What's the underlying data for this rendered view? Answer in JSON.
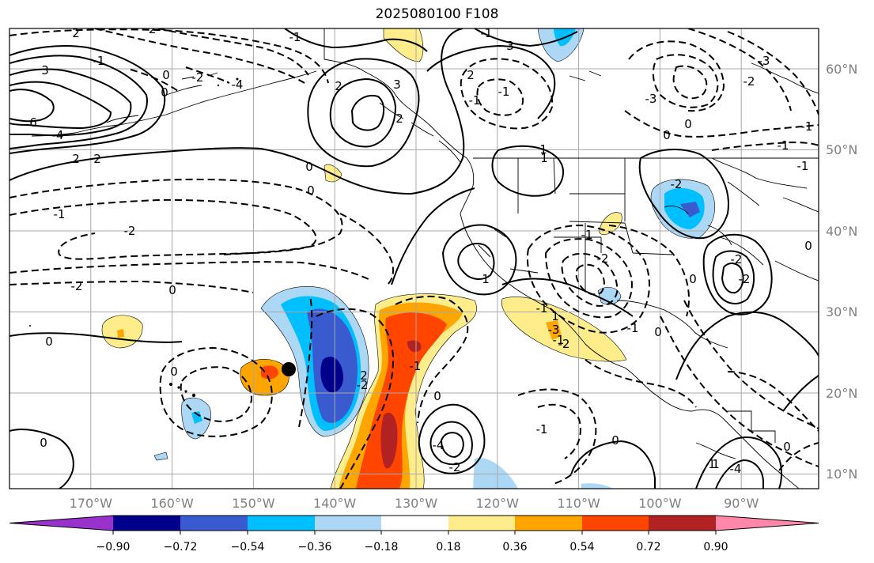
{
  "title": "2025080100 F108",
  "lon_labels": [
    "170°W",
    "160°W",
    "150°W",
    "140°W",
    "130°W",
    "120°W",
    "110°W",
    "100°W",
    "90°W"
  ],
  "lat_labels": [
    "60°N",
    "50°N",
    "40°N",
    "30°N",
    "20°N",
    "10°N"
  ],
  "colorbar": {
    "tick_labels": [
      "−0.90",
      "−0.72",
      "−0.54",
      "−0.36",
      "−0.18",
      "0.18",
      "0.36",
      "0.54",
      "0.72",
      "0.90"
    ],
    "colors": [
      "#9932cc",
      "#00008b",
      "#3a5bcf",
      "#00bfff",
      "#add8f5",
      "#ffffff",
      "#ffec8b",
      "#ffa500",
      "#ff4500",
      "#b22222",
      "#ff88aa"
    ]
  },
  "contour_labels": [
    "2",
    "-2",
    "0",
    "-1",
    "3",
    "6",
    "-4",
    "0",
    "-2",
    "-1",
    "0",
    "0",
    "2",
    "0",
    "2",
    "-4",
    "3",
    "3",
    "-2",
    "-1",
    "0",
    "1",
    "-2",
    "-1",
    "-1",
    "-3",
    "-2",
    "0",
    "-1",
    "0",
    "0",
    "-1",
    "-2",
    "-2",
    "0",
    "-1",
    "-1",
    "-3",
    "-2",
    "1",
    "-2",
    "-2",
    "-2",
    "-1",
    "-4",
    "-2",
    "-4",
    "0",
    "1",
    "-1",
    "2",
    "0",
    "2",
    "0",
    "-1",
    "1",
    "2",
    "-1",
    "1",
    "2",
    "1",
    "0",
    "-1",
    "-3",
    "0",
    "-1",
    "0"
  ]
}
